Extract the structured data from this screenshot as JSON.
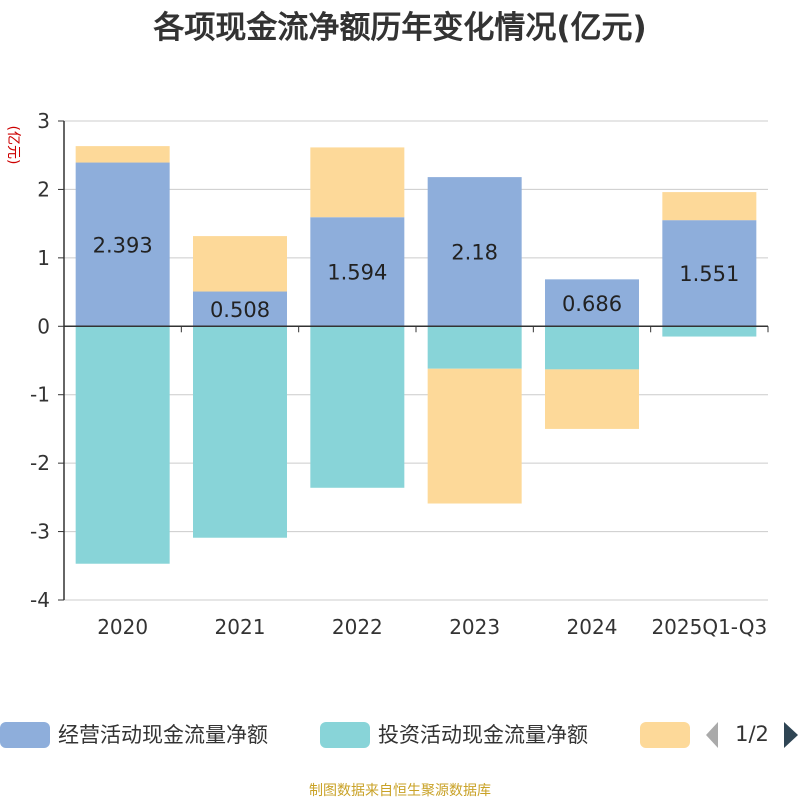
{
  "title": "各项现金流净额历年变化情况(亿元)",
  "source": "制图数据来自恒生聚源数据库",
  "pager": {
    "text": "1/2"
  },
  "chart_data": {
    "type": "bar",
    "stacked": true,
    "title": "各项现金流净额历年变化情况(亿元)",
    "ylabel": "(亿元)",
    "xlabel": "",
    "ylim": [
      -4,
      3
    ],
    "yticks": [
      -4,
      -3,
      -2,
      -1,
      0,
      1,
      2,
      3
    ],
    "categories": [
      "2020",
      "2021",
      "2022",
      "2023",
      "2024",
      "2025Q1-Q3"
    ],
    "legend_position": "bottom",
    "series": [
      {
        "name": "经营活动现金流量净额",
        "color": "#8eaedb",
        "values": [
          2.393,
          0.508,
          1.594,
          2.18,
          0.686,
          1.551
        ],
        "show_labels": true
      },
      {
        "name": "投资活动现金流量净额",
        "color": "#88d4d8",
        "values": [
          -3.47,
          -3.09,
          -2.36,
          -0.62,
          -0.63,
          -0.15
        ],
        "show_labels": false
      },
      {
        "name": "",
        "color": "#fdd999",
        "values": [
          0.24,
          0.81,
          1.02,
          -1.97,
          -0.87,
          0.41
        ],
        "show_labels": false
      }
    ]
  }
}
